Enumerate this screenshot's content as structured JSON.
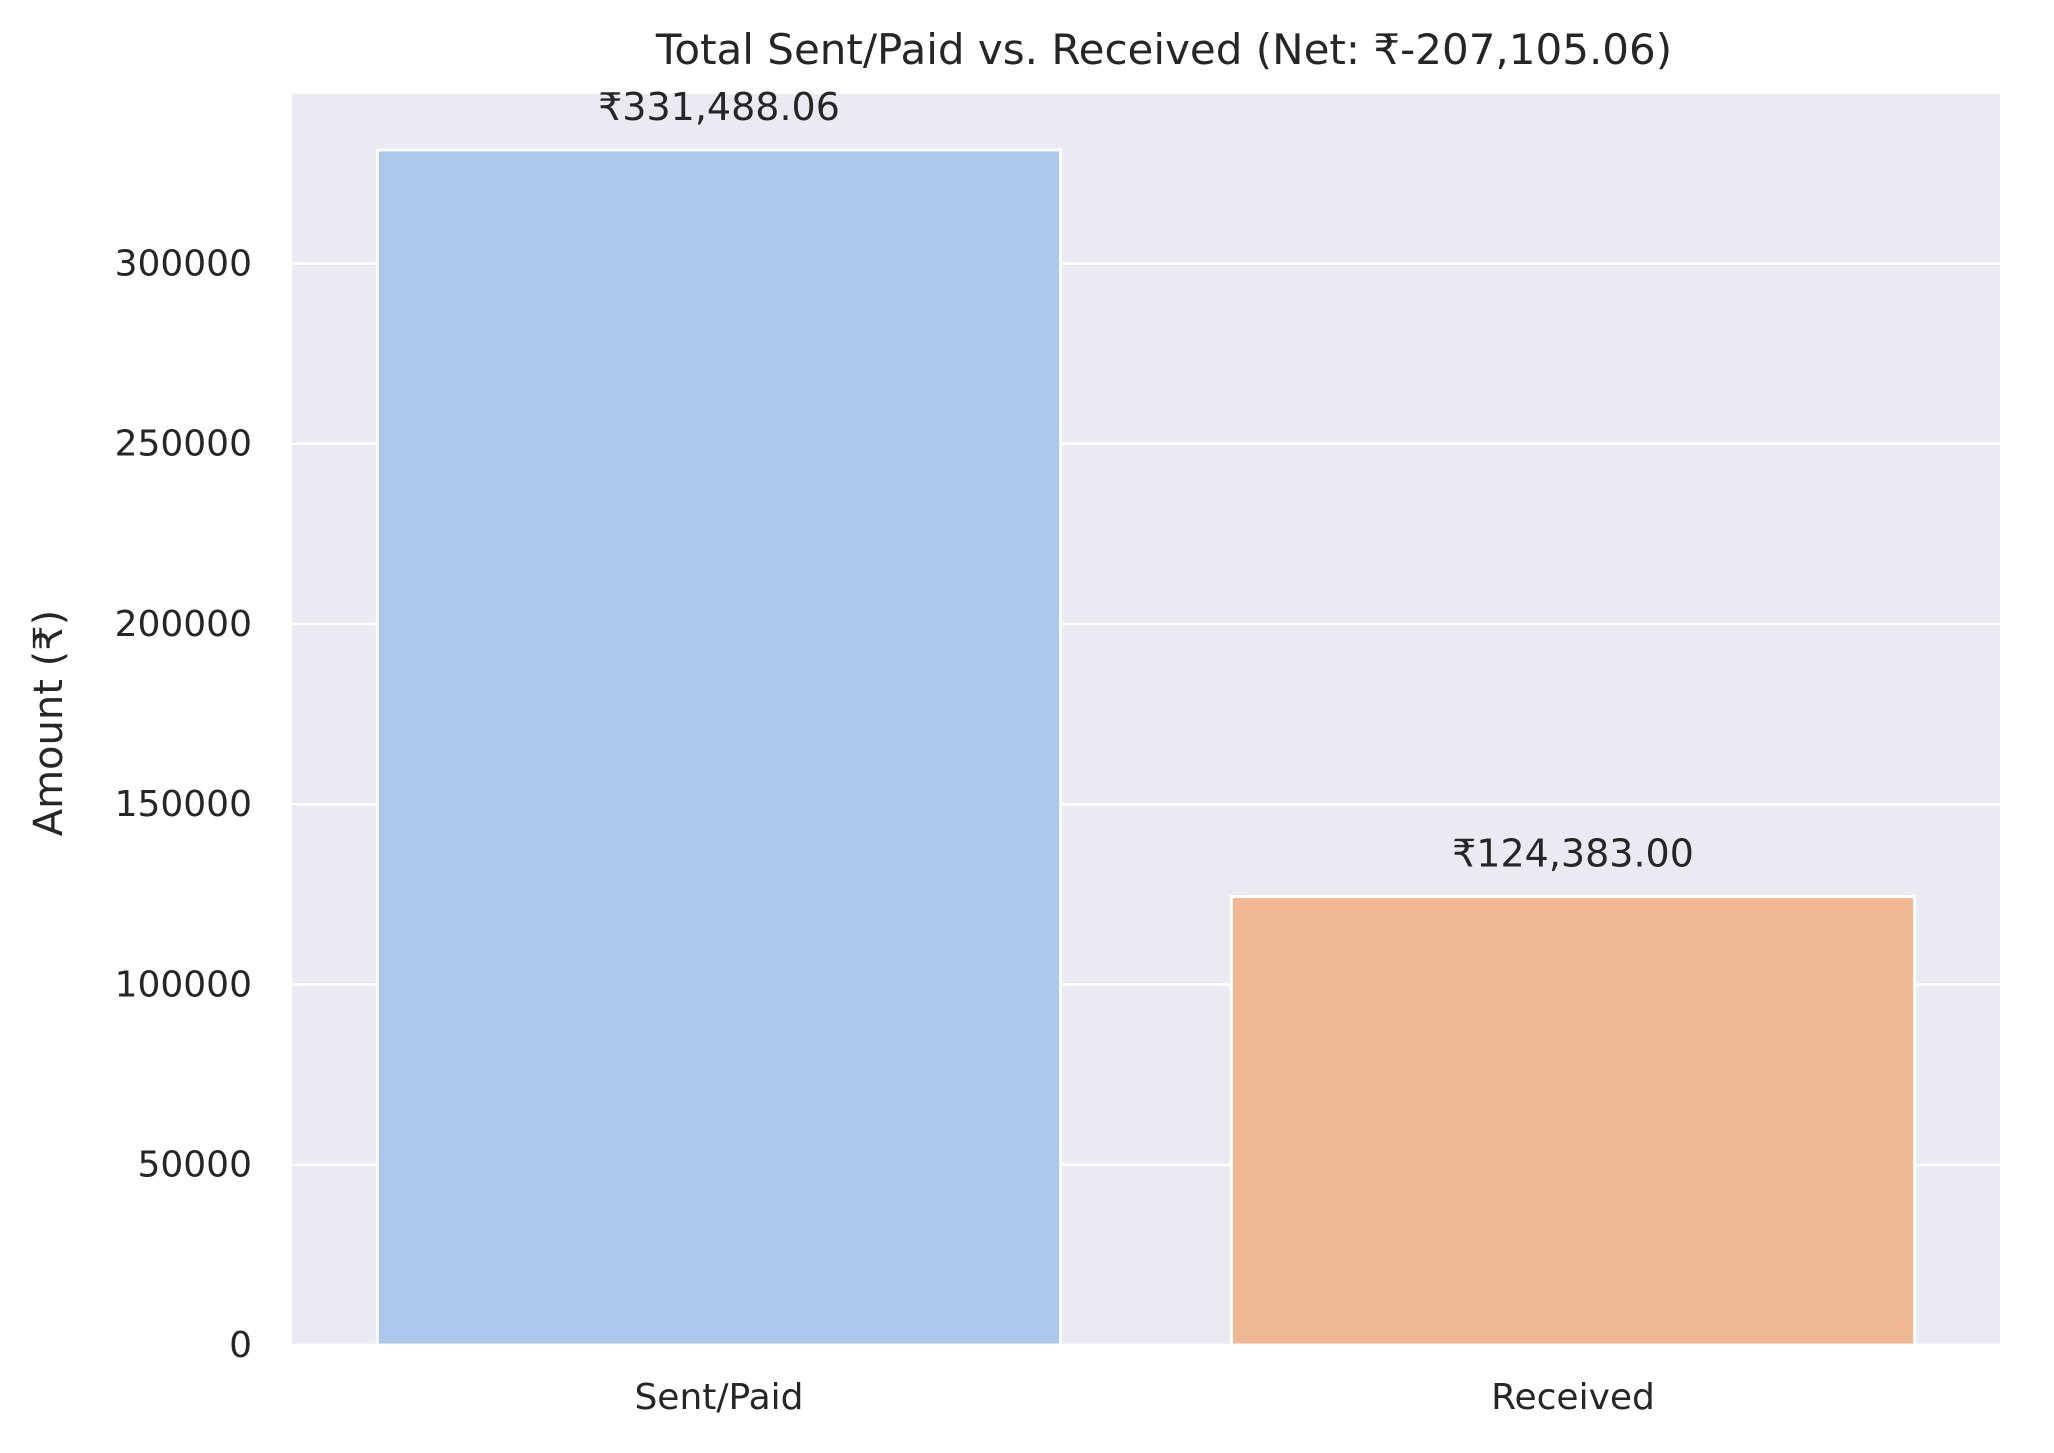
{
  "chart_data": {
    "type": "bar",
    "title": "Total Sent/Paid vs. Received (Net: ₹-207,105.06)",
    "xlabel": "",
    "ylabel": "Amount (₹)",
    "categories": [
      "Sent/Paid",
      "Received"
    ],
    "values": [
      331488.06,
      124383.0
    ],
    "data_labels": [
      "₹331,488.06",
      "₹124,383.00"
    ],
    "colors": [
      "#abc9ec",
      "#f0b793"
    ],
    "ylim": [
      0,
      347000
    ],
    "yticks": [
      0,
      50000,
      100000,
      150000,
      200000,
      250000,
      300000
    ],
    "ytick_labels": [
      "0",
      "50000",
      "100000",
      "150000",
      "200000",
      "250000",
      "300000"
    ],
    "grid": true,
    "background": "#eaeaf2",
    "grid_color": "#ffffff"
  }
}
